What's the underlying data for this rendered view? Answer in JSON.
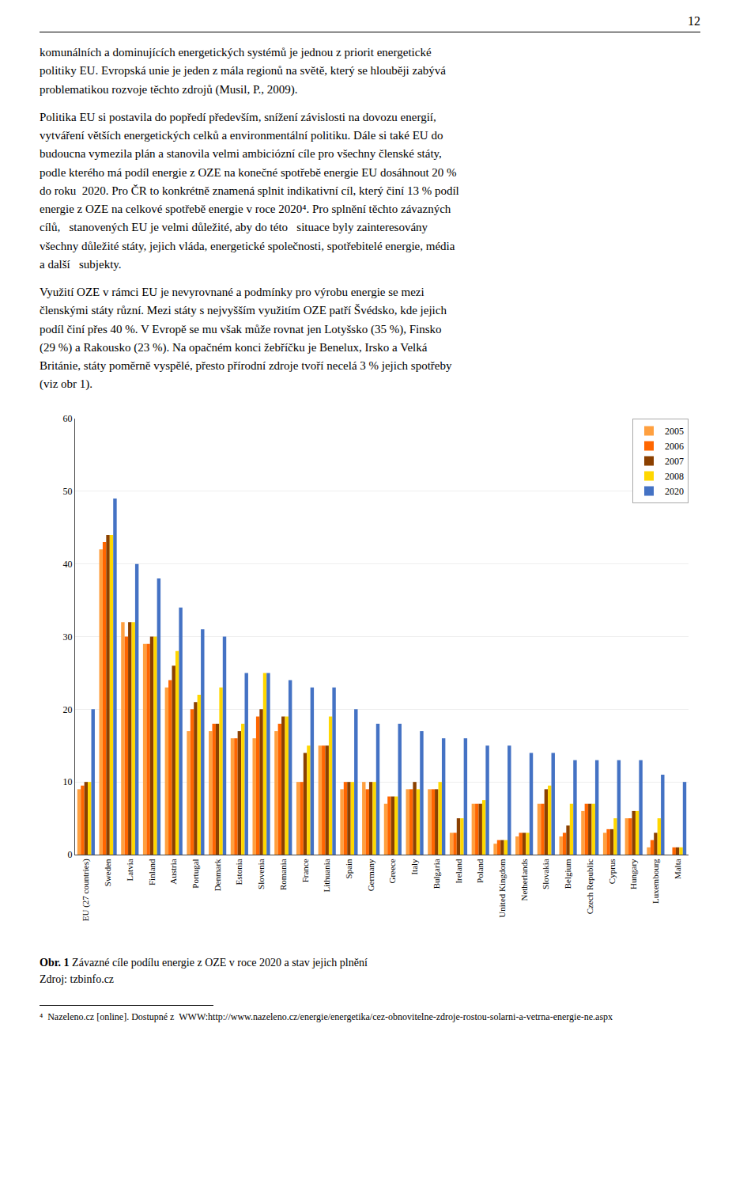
{
  "page_number": "12",
  "paragraphs": [
    [
      "komunálních a dominujících energetických systémů je jednou z priorit energetické",
      "politiky EU. Evropská unie je jeden z mála regionů na světě, který se hlouběji zabývá",
      "problematikou rozvoje těchto zdrojů (Musil, P., 2009)."
    ],
    [
      "Politika EU si postavila do popředí především, snížení závislosti na dovozu energií,",
      "vytváření větších energetických celků a environmentální politiku. Dále si také EU do",
      "budoucna vymezila plán a stanovila velmi ambiciózní cíle pro všechny členské státy,",
      "podle kterého má podíl energie z OZE na konečné spotřebě energie EU dosáhnout 20 %",
      "do roku  2020. Pro ČR to konkrétně znamená splnit indikativní cíl, který činí 13 % podíl",
      "energie z OZE na celkové spotřebě energie v roce 2020⁴. Pro splnění těchto závazných",
      "cílů,   stanovených EU je velmi důležité, aby do této   situace byly zainteresovány",
      "všechny důležité státy, jejich vláda, energetické společnosti, spotřebitelé energie, média",
      "a další   subjekty."
    ],
    [
      "Využití OZE v rámci EU je nevyrovnané a podmínky pro výrobu energie se mezi",
      "členskými státy různí. Mezi státy s nejvyšším využitím OZE patří Švédsko, kde jejich",
      "podíl činí přes 40 %. V Evropě se mu však může rovnat jen Lotyšsko (35 %), Finsko",
      "(29 %) a Rakousko (23 %). Na opačném konci žebříčku je Benelux, Irsko a Velká",
      "Británie, státy poměrně vyspělé, přesto přírodní zdroje tvoří necelá 3 % jejich spotřeby",
      "(viz obr 1)."
    ]
  ],
  "chart_data": {
    "type": "bar",
    "categories": [
      "EU (27 countries)",
      "Sweden",
      "Latvia",
      "Finland",
      "Austria",
      "Portugal",
      "Denmark",
      "Estonia",
      "Slovenia",
      "Romania",
      "France",
      "Lithuania",
      "Spain",
      "Germany",
      "Greece",
      "Italy",
      "Bulgaria",
      "Ireland",
      "Poland",
      "United Kingdom",
      "Netherlands",
      "Slovakia",
      "Belgium",
      "Czech Republic",
      "Cyprus",
      "Hungary",
      "Luxembourg",
      "Malta"
    ],
    "series": [
      {
        "name": "2005",
        "color": "#FFA040",
        "values": [
          9,
          42,
          32,
          29,
          23,
          17,
          17,
          16,
          16,
          17,
          10,
          15,
          9,
          10,
          7,
          9,
          9,
          3,
          7,
          1.5,
          2.5,
          7,
          2.5,
          6,
          3,
          5,
          1,
          0
        ]
      },
      {
        "name": "2006",
        "color": "#FF6600",
        "values": [
          9.5,
          43,
          30,
          29,
          24,
          20,
          18,
          16,
          19,
          18,
          10,
          15,
          10,
          9,
          8,
          9,
          9,
          3,
          7,
          2,
          3,
          7,
          3,
          7,
          3.5,
          5,
          2,
          1
        ]
      },
      {
        "name": "2007",
        "color": "#8B4000",
        "values": [
          10,
          44,
          32,
          30,
          26,
          21,
          18,
          17,
          20,
          19,
          14,
          15,
          10,
          10,
          8,
          10,
          9,
          5,
          7,
          2,
          3,
          9,
          4,
          7,
          3.5,
          6,
          3,
          1
        ]
      },
      {
        "name": "2008",
        "color": "#FFD700",
        "values": [
          10,
          44,
          32,
          30,
          28,
          22,
          23,
          18,
          25,
          19,
          15,
          19,
          10,
          10,
          8,
          9,
          10,
          5,
          7.5,
          2,
          3,
          9.5,
          7,
          7,
          5,
          6,
          5,
          1
        ]
      },
      {
        "name": "2020",
        "color": "#4472C4",
        "values": [
          20,
          49,
          40,
          38,
          34,
          31,
          30,
          25,
          25,
          24,
          23,
          23,
          20,
          18,
          18,
          17,
          16,
          16,
          15,
          15,
          14,
          14,
          13,
          13,
          13,
          13,
          11,
          10
        ]
      }
    ],
    "ylim": [
      0,
      60
    ],
    "yticks": [
      0,
      10,
      20,
      30,
      40,
      50,
      60
    ],
    "grid": true,
    "legend": "upper right"
  },
  "caption_bold": "Obr. 1",
  "caption_normal": " Závazné cíle podílu energie z OZE v roce 2020 a stav jejich plnění",
  "caption_line2": "Zdroj: tzbinfo.cz",
  "footnote": "⁴  Nazeleno.cz [online]. Dostupné z  WWW:http://www.nazeleno.cz/energie/energetika/cez-obnovitelne-zdroje-rostou-solarni-a-vetrna-energie-ne.aspx"
}
